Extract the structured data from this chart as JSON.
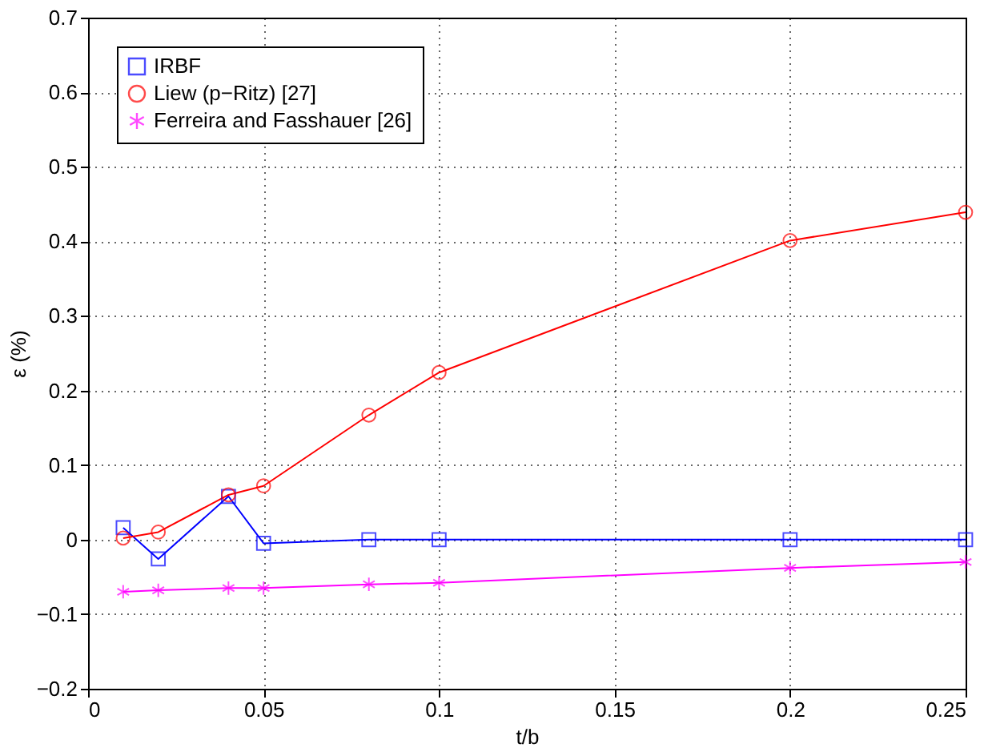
{
  "chart_data": {
    "type": "line",
    "xlabel": "t/b",
    "ylabel": "ε (%)",
    "x": [
      0.01,
      0.02,
      0.04,
      0.05,
      0.08,
      0.1,
      0.2,
      0.25
    ],
    "series": [
      {
        "name": "IRBF",
        "color": "#0000ff",
        "marker": "square",
        "values": [
          0.016,
          -0.026,
          0.058,
          -0.005,
          0,
          0,
          0,
          0
        ]
      },
      {
        "name": "Liew (p−Ritz) [27]",
        "color": "#ff0000",
        "marker": "circle",
        "values": [
          0.002,
          0.01,
          0.06,
          0.072,
          0.167,
          0.224,
          0.401,
          0.439
        ]
      },
      {
        "name": "Ferreira and Fasshauer [26]",
        "color": "#ff00ff",
        "marker": "cross",
        "values": [
          -0.07,
          -0.068,
          -0.065,
          -0.065,
          -0.06,
          -0.058,
          -0.038,
          -0.03
        ]
      }
    ],
    "xlim": [
      0,
      0.25
    ],
    "xticks": [
      0,
      0.05,
      0.1,
      0.15,
      0.2,
      0.25
    ],
    "ylim": [
      -0.2,
      0.7
    ],
    "yticks": [
      -0.2,
      -0.1,
      0,
      0.1,
      0.2,
      0.3,
      0.4,
      0.5,
      0.6,
      0.7
    ],
    "grid": true,
    "legend": "top left",
    "line_style": "solid"
  }
}
